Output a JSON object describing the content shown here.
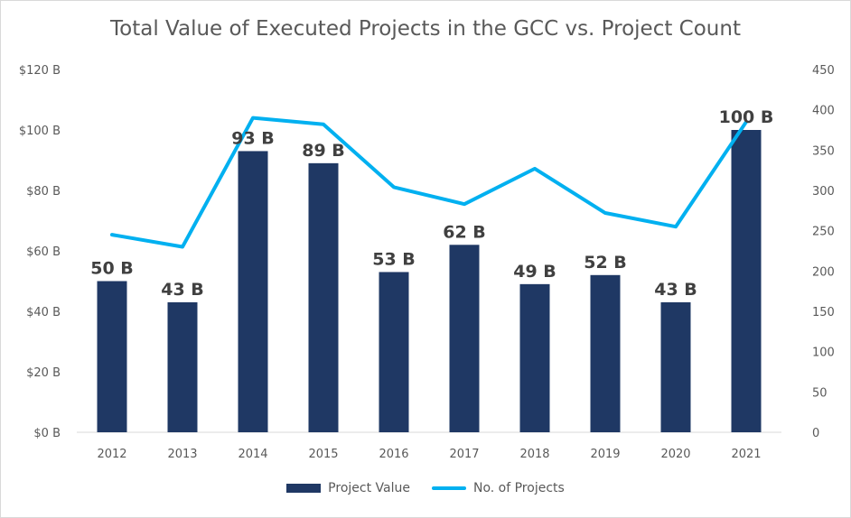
{
  "chart_data": {
    "type": "bar",
    "title": "Total Value of Executed Projects in the GCC vs. Project Count",
    "categories": [
      "2012",
      "2013",
      "2014",
      "2015",
      "2016",
      "2017",
      "2018",
      "2019",
      "2020",
      "2021"
    ],
    "series": [
      {
        "name": "Project Value",
        "type": "bar",
        "axis": "left",
        "color": "#1F3864",
        "values": [
          50,
          43,
          93,
          89,
          53,
          62,
          49,
          52,
          43,
          100
        ],
        "data_labels": [
          "50 B",
          "43 B",
          "93 B",
          "89 B",
          "53 B",
          "62 B",
          "49 B",
          "52 B",
          "43 B",
          "100 B"
        ]
      },
      {
        "name": "No. of Projects",
        "type": "line",
        "axis": "right",
        "color": "#00B0F0",
        "values": [
          245,
          230,
          390,
          382,
          304,
          283,
          327,
          272,
          255,
          385
        ]
      }
    ],
    "y_left": {
      "ylim": [
        0,
        120
      ],
      "ticks": [
        0,
        20,
        40,
        60,
        80,
        100,
        120
      ],
      "tick_labels": [
        "$0 B",
        "$20 B",
        "$40 B",
        "$60 B",
        "$80 B",
        "$100 B",
        "$120 B"
      ]
    },
    "y_right": {
      "ylim": [
        0,
        450
      ],
      "ticks": [
        0,
        50,
        100,
        150,
        200,
        250,
        300,
        350,
        400,
        450
      ],
      "tick_labels": [
        "0",
        "50",
        "100",
        "150",
        "200",
        "250",
        "300",
        "350",
        "400",
        "450"
      ]
    },
    "grid": false,
    "legend_position": "bottom"
  }
}
